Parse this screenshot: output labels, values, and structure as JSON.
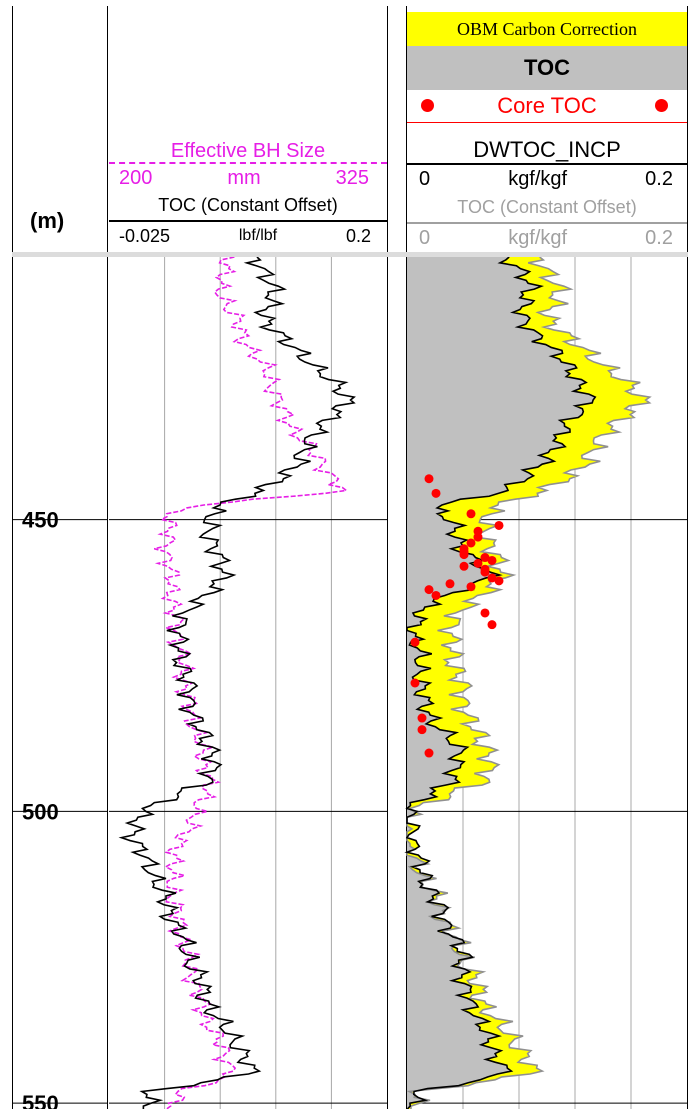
{
  "colors": {
    "magenta": "#e61ee6",
    "red": "#ff0000",
    "grey_fill": "#c0c0c0",
    "yellow": "#ffff00",
    "grey_text": "#a0a0a0",
    "grid": "#a8a8a8"
  },
  "depth_track": {
    "unit_label": "(m)",
    "ticks": [
      "450",
      "500",
      "550"
    ]
  },
  "left_track": {
    "curve1": {
      "name": "Effective BH Size",
      "min": "200",
      "unit": "mm",
      "max": "325"
    },
    "curve2": {
      "name": "TOC (Constant Offset)",
      "min": "-0.025",
      "unit": "lbf/lbf",
      "max": "0.2"
    }
  },
  "right_track": {
    "banner": "OBM Carbon Correction",
    "section_title": "TOC",
    "legend_points": "Core TOC",
    "curve1": {
      "name": "DWTOC_INCP",
      "min": "0",
      "unit": "kgf/kgf",
      "max": "0.2"
    },
    "curve2": {
      "name": "TOC (Constant Offset)",
      "min": "0",
      "unit": "kgf/kgf",
      "max": "0.2"
    }
  },
  "chart_data": {
    "type": "line",
    "y_axis": {
      "label": "(m)",
      "range": [
        405,
        551
      ],
      "ticks": [
        450,
        500,
        550
      ]
    },
    "left_track": {
      "effective_bh_size": {
        "unit": "mm",
        "range": [
          200,
          325
        ],
        "depth": [
          405,
          410,
          415,
          420,
          425,
          430,
          435,
          440,
          445,
          448,
          450,
          455,
          460,
          465,
          470,
          475,
          480,
          485,
          490,
          495,
          500,
          505,
          510,
          515,
          520,
          525,
          530,
          535,
          540,
          545,
          548,
          550
        ],
        "values": [
          255,
          249,
          256,
          262,
          272,
          276,
          284,
          295,
          305,
          232,
          227,
          226,
          228,
          229,
          231,
          233,
          235,
          238,
          242,
          245,
          240,
          232,
          228,
          229,
          232,
          235,
          239,
          243,
          250,
          256,
          232,
          230
        ]
      },
      "toc_constant_offset": {
        "unit": "lbf/lbf",
        "range": [
          -0.025,
          0.2
        ],
        "depth": [
          405,
          410,
          415,
          420,
          425,
          430,
          435,
          440,
          445,
          448,
          450,
          455,
          460,
          465,
          470,
          475,
          480,
          485,
          490,
          495,
          500,
          505,
          510,
          515,
          520,
          525,
          530,
          535,
          540,
          545,
          548,
          550
        ],
        "values": [
          0.09,
          0.11,
          0.1,
          0.12,
          0.15,
          0.17,
          0.14,
          0.13,
          0.1,
          0.06,
          0.055,
          0.06,
          0.07,
          0.04,
          0.03,
          0.035,
          0.04,
          0.045,
          0.06,
          0.055,
          0.0,
          -0.005,
          0.01,
          0.02,
          0.03,
          0.04,
          0.05,
          0.06,
          0.08,
          0.09,
          0.01,
          0.005
        ]
      }
    },
    "right_track": {
      "dwtoc_incp": {
        "unit": "kgf/kgf",
        "range": [
          0,
          0.2
        ],
        "depth": [
          405,
          410,
          415,
          420,
          425,
          430,
          435,
          440,
          445,
          448,
          450,
          455,
          460,
          465,
          470,
          475,
          480,
          485,
          490,
          495,
          500,
          505,
          510,
          515,
          520,
          525,
          530,
          535,
          540,
          545,
          548,
          550
        ],
        "values": [
          0.07,
          0.09,
          0.08,
          0.1,
          0.12,
          0.13,
          0.11,
          0.1,
          0.07,
          0.02,
          0.03,
          0.04,
          0.06,
          0.01,
          0.005,
          0.01,
          0.01,
          0.02,
          0.04,
          0.03,
          0.0,
          0.005,
          0.01,
          0.02,
          0.03,
          0.04,
          0.04,
          0.05,
          0.06,
          0.07,
          0.01,
          0.005
        ]
      },
      "toc_constant_offset": {
        "unit": "kgf/kgf",
        "range": [
          0,
          0.2
        ],
        "depth": [
          405,
          410,
          415,
          420,
          425,
          430,
          435,
          440,
          445,
          448,
          450,
          455,
          460,
          465,
          470,
          475,
          480,
          485,
          490,
          495,
          500,
          505,
          510,
          515,
          520,
          525,
          530,
          535,
          540,
          545,
          548,
          550
        ],
        "values": [
          0.09,
          0.11,
          0.1,
          0.12,
          0.15,
          0.17,
          0.14,
          0.13,
          0.1,
          0.06,
          0.055,
          0.06,
          0.07,
          0.04,
          0.03,
          0.035,
          0.04,
          0.045,
          0.06,
          0.055,
          0.0,
          -0.005,
          0.01,
          0.02,
          0.03,
          0.04,
          0.05,
          0.06,
          0.08,
          0.09,
          0.01,
          0.005
        ]
      },
      "core_toc": {
        "unit": "kgf/kgf",
        "depth": [
          443,
          445.5,
          449,
          451,
          452,
          453,
          454,
          455,
          455.5,
          456,
          456.5,
          457,
          457.5,
          458,
          458.5,
          459,
          460,
          460.5,
          461,
          461.5,
          462,
          463,
          466,
          468,
          471,
          478,
          484,
          486,
          490
        ],
        "values": [
          0.01,
          0.015,
          0.04,
          0.06,
          0.045,
          0.045,
          0.04,
          0.035,
          0.035,
          0.035,
          0.05,
          0.055,
          0.045,
          0.035,
          0.05,
          0.05,
          0.055,
          0.06,
          0.025,
          0.04,
          0.01,
          0.015,
          0.05,
          0.055,
          0.0,
          0.0,
          0.005,
          0.005,
          0.01
        ]
      }
    }
  }
}
